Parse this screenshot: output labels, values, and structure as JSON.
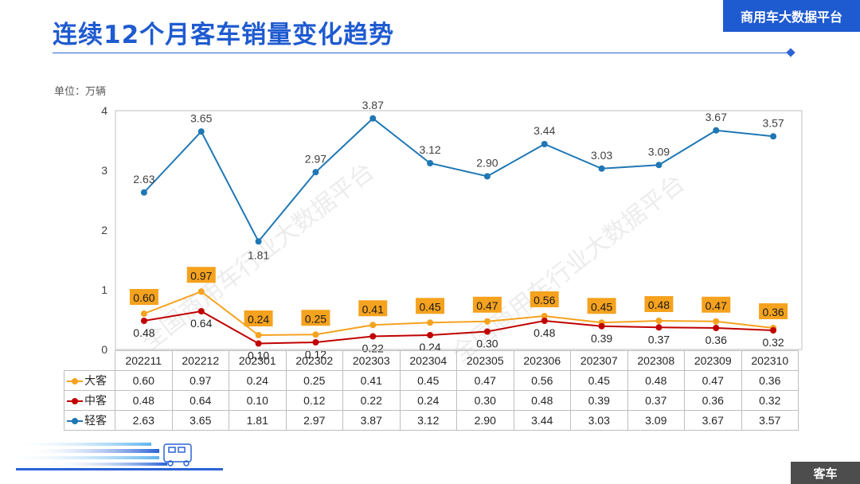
{
  "header": {
    "title": "连续12个月客车销量变化趋势",
    "brand": "商用车大数据平台",
    "unit": "单位：万辆",
    "footer_tag": "客车",
    "watermark": "全国商用车行业大数据平台"
  },
  "colors": {
    "title": "#1f5bd0",
    "large": "#f5a21f",
    "medium": "#c00000",
    "light": "#1f77b4",
    "label_box": "#f5a21f"
  },
  "chart_data": {
    "type": "line",
    "categories": [
      "202211",
      "202212",
      "202301",
      "202302",
      "202303",
      "202304",
      "202305",
      "202306",
      "202307",
      "202308",
      "202309",
      "202310"
    ],
    "ylim": [
      0,
      4
    ],
    "yticks": [
      "0",
      "1",
      "2",
      "3",
      "4"
    ],
    "series": [
      {
        "name": "大客",
        "key": "large",
        "values": [
          0.6,
          0.97,
          0.24,
          0.25,
          0.41,
          0.45,
          0.47,
          0.56,
          0.45,
          0.48,
          0.47,
          0.36
        ],
        "labels": [
          "0.60",
          "0.97",
          "0.24",
          "0.25",
          "0.41",
          "0.45",
          "0.47",
          "0.56",
          "0.45",
          "0.48",
          "0.47",
          "0.36"
        ]
      },
      {
        "name": "中客",
        "key": "medium",
        "values": [
          0.48,
          0.64,
          0.1,
          0.12,
          0.22,
          0.24,
          0.3,
          0.48,
          0.39,
          0.37,
          0.36,
          0.32
        ],
        "labels": [
          "0.48",
          "0.64",
          "0.10",
          "0.12",
          "0.22",
          "0.24",
          "0.30",
          "0.48",
          "0.39",
          "0.37",
          "0.36",
          "0.32"
        ]
      },
      {
        "name": "轻客",
        "key": "light",
        "values": [
          2.63,
          3.65,
          1.81,
          2.97,
          3.87,
          3.12,
          2.9,
          3.44,
          3.03,
          3.09,
          3.67,
          3.57
        ],
        "labels": [
          "2.63",
          "3.65",
          "1.81",
          "2.97",
          "3.87",
          "3.12",
          "2.90",
          "3.44",
          "3.03",
          "3.09",
          "3.67",
          "3.57"
        ]
      }
    ]
  }
}
